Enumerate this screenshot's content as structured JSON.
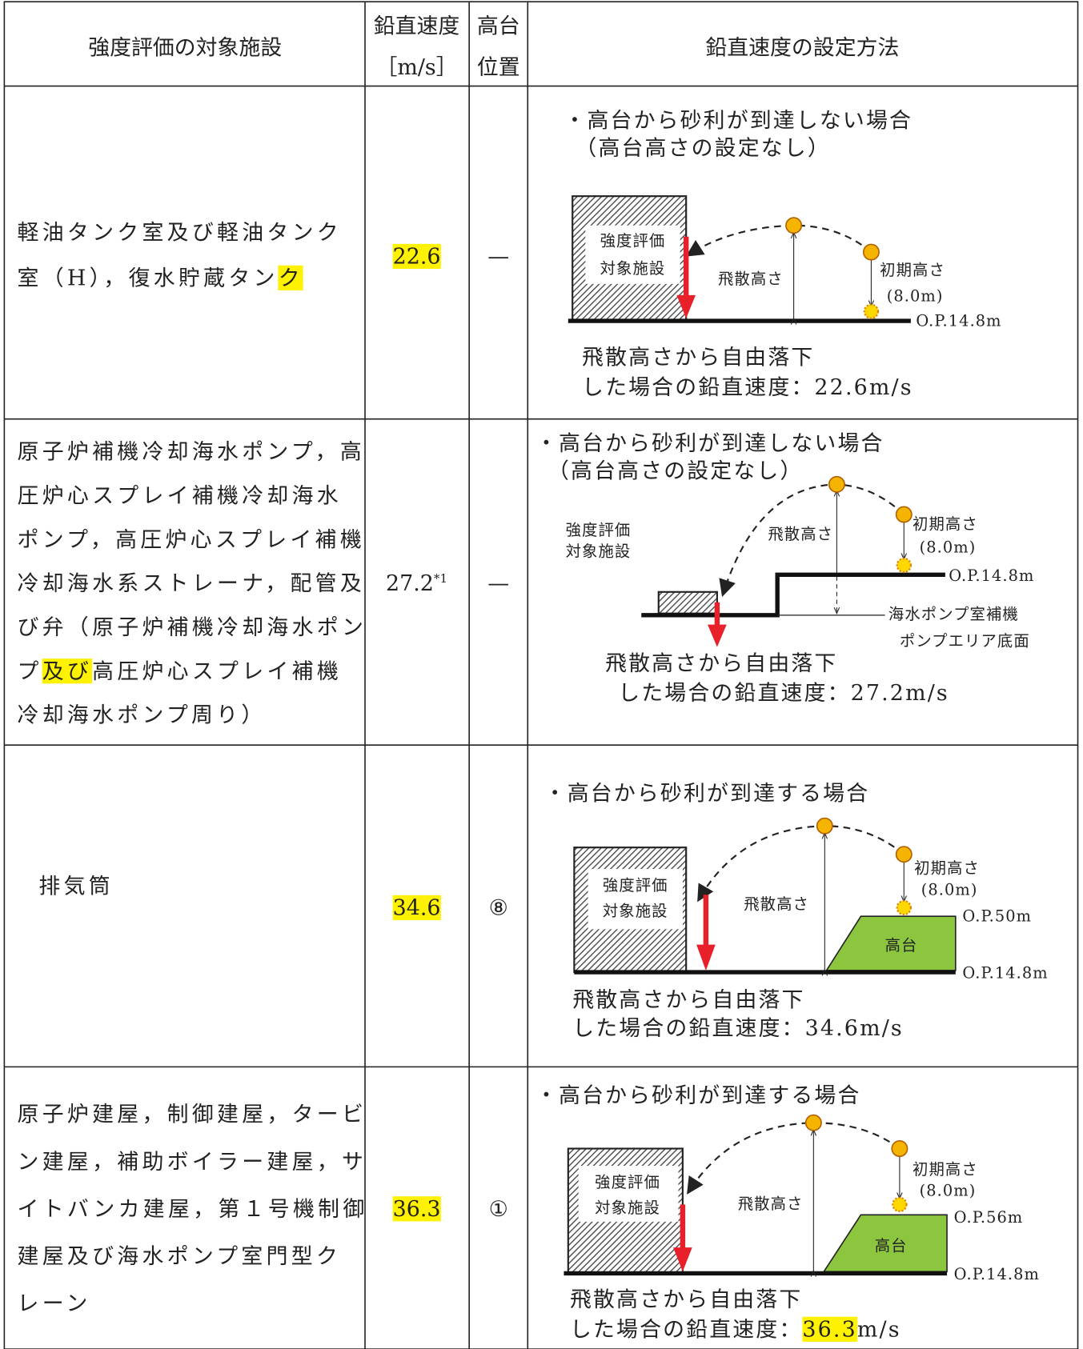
{
  "header": {
    "facility": "強度評価の対象施設",
    "velocity": [
      "鉛直速度",
      "［m/s］"
    ],
    "position": [
      "高台",
      "位置"
    ],
    "method": "鉛直速度の設定方法"
  },
  "rows": [
    {
      "facility": [
        [
          "軽油タンク室及び軽油タンク"
        ],
        [
          "室（H），復水貯蔵タン",
          {
            "text": "ク",
            "highlight": true
          }
        ]
      ],
      "velocity": [
        {
          "text": "22.6",
          "highlight": true
        }
      ],
      "position": "—",
      "diagram": {
        "condition": "・高台から砂利が到達しない場合",
        "condition_note": "（高台高さの設定なし）",
        "facility_label": [
          "強度評価",
          "対象施設"
        ],
        "height_label": "飛散高さ",
        "initial_label": "初期高さ",
        "initial_value": "(8.0m)",
        "levels": [
          "O.P.14.8m"
        ],
        "caption": [
          [
            "飛散高さから自由落下"
          ],
          [
            "した場合の鉛直速度：22.6m/s"
          ]
        ]
      }
    },
    {
      "facility": [
        [
          "原子炉補機冷却海水ポンプ，高"
        ],
        [
          "圧炉心スプレイ補機冷却海水"
        ],
        [
          "ポンプ，高圧炉心スプレイ補機"
        ],
        [
          "冷却海水系ストレーナ，配管及"
        ],
        [
          "び弁（原子炉補機冷却海水ポン"
        ],
        [
          "プ",
          {
            "text": "及び",
            "highlight": true
          },
          "高圧炉心スプレイ補機"
        ],
        [
          "冷却海水ポンプ周り）"
        ]
      ],
      "velocity": [
        "27.2",
        {
          "text": "*1",
          "superscript": true
        }
      ],
      "position": "—",
      "diagram": {
        "condition": "・高台から砂利が到達しない場合",
        "condition_note": "（高台高さの設定なし）",
        "facility_label": [
          "強度評価",
          "対象施設"
        ],
        "height_label": "飛散高さ",
        "initial_label": "初期高さ",
        "initial_value": "(8.0m)",
        "levels": [
          "O.P.14.8m"
        ],
        "floor": [
          "海水ポンプ室補機",
          "ポンプエリア底面"
        ],
        "caption": [
          [
            "飛散高さから自由落下"
          ],
          [
            "した場合の鉛直速度：27.2m/s"
          ]
        ]
      }
    },
    {
      "facility": [
        [
          "排気筒"
        ]
      ],
      "velocity": [
        {
          "text": "34.6",
          "highlight": true
        }
      ],
      "position": "⑧",
      "diagram": {
        "condition": "・高台から砂利が到達する場合",
        "facility_label": [
          "強度評価",
          "対象施設"
        ],
        "height_label": "飛散高さ",
        "initial_label": "初期高さ",
        "initial_value": "(8.0m)",
        "levels": [
          "O.P.50m",
          "O.P.14.8m"
        ],
        "plateau": "高台",
        "caption": [
          [
            "飛散高さから自由落下"
          ],
          [
            "した場合の鉛直速度：34.6m/s"
          ]
        ]
      }
    },
    {
      "facility": [
        [
          "原子炉建屋，制御建屋，タービ"
        ],
        [
          "ン建屋，補助ボイラー建屋，サ"
        ],
        [
          "イトバンカ建屋，第１号機制御"
        ],
        [
          "建屋及び海水ポンプ室門型ク"
        ],
        [
          "レーン"
        ]
      ],
      "velocity": [
        {
          "text": "36.3",
          "highlight": true
        }
      ],
      "position": "①",
      "diagram": {
        "condition": "・高台から砂利が到達する場合",
        "facility_label": [
          "強度評価",
          "対象施設"
        ],
        "height_label": "飛散高さ",
        "initial_label": "初期高さ",
        "initial_value": "(8.0m)",
        "levels": [
          "O.P.56m",
          "O.P.14.8m"
        ],
        "plateau": "高台",
        "caption": [
          [
            "飛散高さから自由落下"
          ],
          [
            "した場合の鉛直速度：",
            {
              "text": "36.3",
              "highlight": true
            },
            "m/s"
          ]
        ]
      }
    }
  ]
}
